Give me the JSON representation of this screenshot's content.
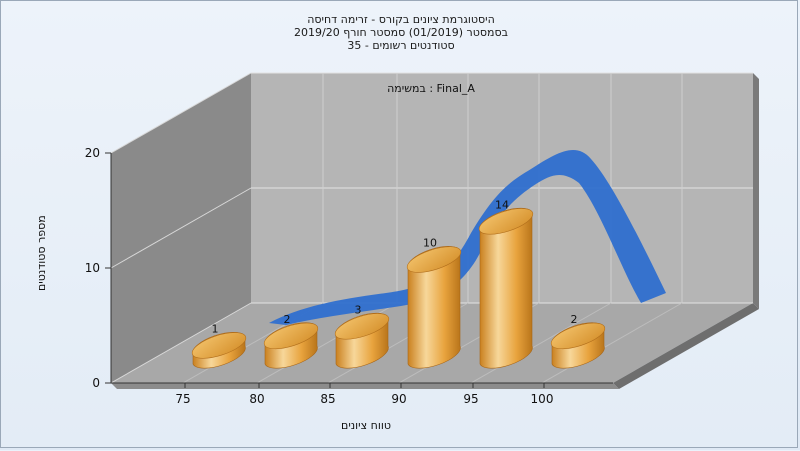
{
  "titles": [
    "היסטוגרמת ציונים בקורס - זרימה דחיסה",
    "בסמסטר  (01/2019)  סמסטר חורף 2019/20",
    "סטודנטים רשומים - 35"
  ],
  "chart_data": {
    "type": "bar",
    "subtitle": "במשימה : Final_A",
    "xlabel": "טווח ציונים",
    "ylabel": "מספר סטודנטים",
    "x_ticks": [
      "75",
      "80",
      "85",
      "90",
      "95",
      "100"
    ],
    "y_ticks": [
      "0",
      "10",
      "20"
    ],
    "ylim": [
      0,
      20
    ],
    "categories": [
      "75-80",
      "80-85",
      "85-90",
      "90-95",
      "95-100",
      "100+"
    ],
    "values": [
      1,
      2,
      3,
      10,
      14,
      2
    ],
    "data_labels": [
      "1",
      "2",
      "3",
      "10",
      "14",
      "2"
    ],
    "trend_curve": "smoothed normal-like distribution ribbon",
    "colors": {
      "bar": "#e8a33d",
      "bar_light": "#f7d79a",
      "bar_dark": "#c97f1d",
      "ribbon": "#2f6fcf",
      "back_wall": "#b4b4b4",
      "side_wall": "#888888",
      "floor": "#a9a9a9"
    }
  }
}
